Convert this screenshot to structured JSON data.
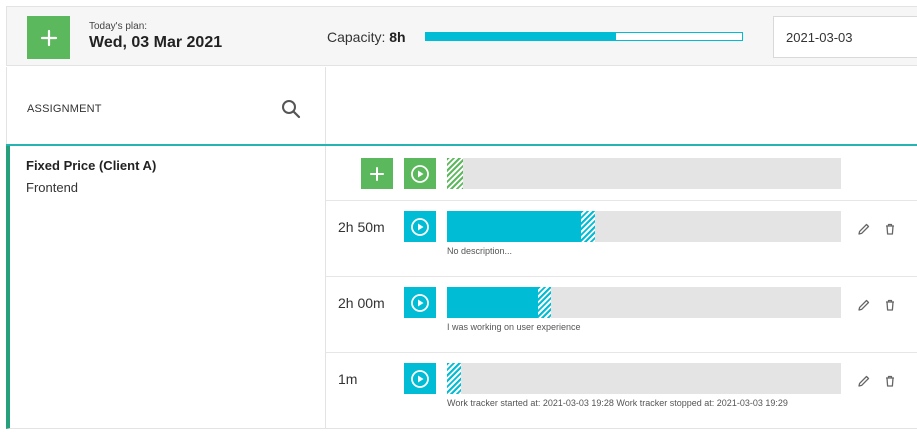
{
  "header": {
    "plan_label": "Today's plan:",
    "plan_date": "Wed, 03 Mar 2021",
    "capacity_label": "Capacity:",
    "capacity_value": "8h",
    "capacity_fill_fraction": 0.6,
    "date_value": "2021-03-03"
  },
  "assignment": {
    "column_title": "ASSIGNMENT",
    "project_name": "Fixed Price (Client A)",
    "project_sub": "Frontend"
  },
  "entries": [
    {
      "duration": "2h 50m",
      "description": "No description...",
      "solid_fraction": 0.34,
      "hatch_fraction": 0.035
    },
    {
      "duration": "2h 00m",
      "description": "I was working on user experience",
      "solid_fraction": 0.23,
      "hatch_fraction": 0.035
    },
    {
      "duration": "1m",
      "description": "Work tracker started at: 2021-03-03 19:28 Work tracker stopped at: 2021-03-03 19:29",
      "solid_fraction": 0.0,
      "hatch_fraction": 0.035
    }
  ],
  "new_entry": {
    "hatch_fraction": 0.04
  },
  "icons": {
    "add": "plus-icon",
    "search": "search-icon",
    "play": "play-circle-icon",
    "edit": "pencil-icon",
    "delete": "trash-icon"
  },
  "colors": {
    "green": "#5cb85c",
    "teal": "#00bcd4",
    "accent_border": "#26a07a"
  }
}
